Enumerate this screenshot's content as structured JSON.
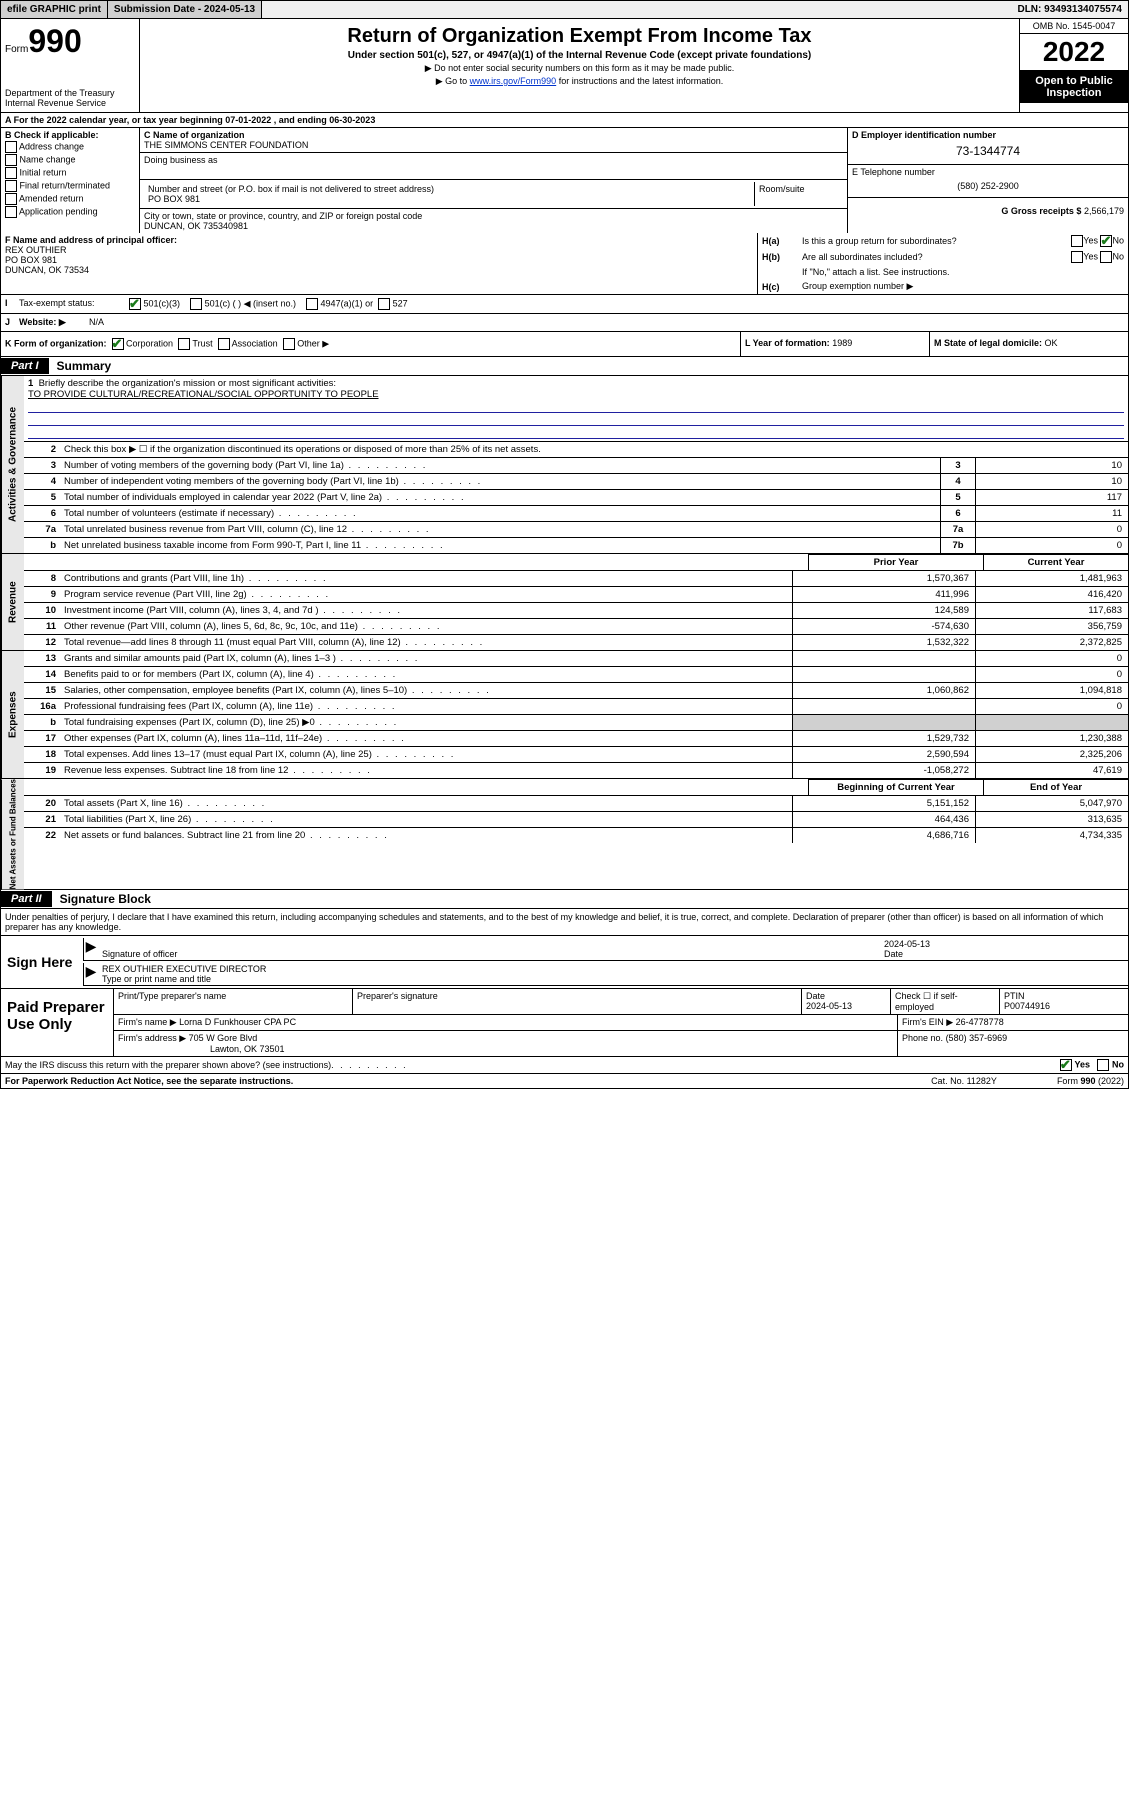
{
  "top_bar": {
    "efile": "efile GRAPHIC print",
    "submission": "Submission Date - 2024-05-13",
    "dln": "DLN: 93493134075574"
  },
  "header": {
    "form_word": "Form",
    "form_num": "990",
    "dept": "Department of the Treasury",
    "irs": "Internal Revenue Service",
    "title": "Return of Organization Exempt From Income Tax",
    "subtitle": "Under section 501(c), 527, or 4947(a)(1) of the Internal Revenue Code (except private foundations)",
    "note1": "▶ Do not enter social security numbers on this form as it may be made public.",
    "note2_pre": "▶ Go to ",
    "note2_link": "www.irs.gov/Form990",
    "note2_post": " for instructions and the latest information.",
    "omb": "OMB No. 1545-0047",
    "year": "2022",
    "inspection1": "Open to Public",
    "inspection2": "Inspection"
  },
  "line_a": "A For the 2022 calendar year, or tax year beginning 07-01-2022     , and ending 06-30-2023",
  "box_b": {
    "title": "B Check if applicable:",
    "items": [
      "Address change",
      "Name change",
      "Initial return",
      "Final return/terminated",
      "Amended return",
      "Application pending"
    ]
  },
  "box_c": {
    "name_label": "C Name of organization",
    "name": "THE SIMMONS CENTER FOUNDATION",
    "dba_label": "Doing business as",
    "dba": "",
    "street_label": "Number and street (or P.O. box if mail is not delivered to street address)",
    "room_label": "Room/suite",
    "street": "PO BOX 981",
    "city_label": "City or town, state or province, country, and ZIP or foreign postal code",
    "city": "DUNCAN, OK  735340981"
  },
  "box_d": {
    "label": "D Employer identification number",
    "value": "73-1344774"
  },
  "box_e": {
    "label": "E Telephone number",
    "value": "(580) 252-2900"
  },
  "box_g": {
    "label": "G Gross receipts $",
    "value": "2,566,179"
  },
  "box_f": {
    "label": "F Name and address of principal officer:",
    "name": "REX OUTHIER",
    "street": "PO BOX 981",
    "city": "DUNCAN, OK  73534"
  },
  "box_h": {
    "a_lbl": "H(a)",
    "a_txt": "Is this a group return for subordinates?",
    "b_lbl": "H(b)",
    "b_txt": "Are all subordinates included?",
    "b_note": "If \"No,\" attach a list. See instructions.",
    "c_lbl": "H(c)",
    "c_txt": "Group exemption number ▶",
    "yes": "Yes",
    "no": "No"
  },
  "line_i": {
    "label": "I",
    "txt": "Tax-exempt status:",
    "o1": "501(c)(3)",
    "o2": "501(c) (  ) ◀ (insert no.)",
    "o3": "4947(a)(1) or",
    "o4": "527"
  },
  "line_j": {
    "label": "J",
    "txt": "Website: ▶",
    "val": "N/A"
  },
  "line_k": {
    "label": "K Form of organization:",
    "o1": "Corporation",
    "o2": "Trust",
    "o3": "Association",
    "o4": "Other ▶"
  },
  "line_l": {
    "label": "L Year of formation:",
    "val": "1989"
  },
  "line_m": {
    "label": "M State of legal domicile:",
    "val": "OK"
  },
  "part1": {
    "label": "Part I",
    "title": "Summary"
  },
  "vtabs": {
    "gov": "Activities & Governance",
    "rev": "Revenue",
    "exp": "Expenses",
    "net": "Net Assets or Fund Balances"
  },
  "mission": {
    "n": "1",
    "label": "Briefly describe the organization's mission or most significant activities:",
    "text": "TO PROVIDE CULTURAL/RECREATIONAL/SOCIAL OPPORTUNITY TO PEOPLE"
  },
  "gov_rows": [
    {
      "n": "2",
      "d": "Check this box ▶ ☐  if the organization discontinued its operations or disposed of more than 25% of its net assets.",
      "box": "",
      "val": ""
    },
    {
      "n": "3",
      "d": "Number of voting members of the governing body (Part VI, line 1a)",
      "box": "3",
      "val": "10"
    },
    {
      "n": "4",
      "d": "Number of independent voting members of the governing body (Part VI, line 1b)",
      "box": "4",
      "val": "10"
    },
    {
      "n": "5",
      "d": "Total number of individuals employed in calendar year 2022 (Part V, line 2a)",
      "box": "5",
      "val": "117"
    },
    {
      "n": "6",
      "d": "Total number of volunteers (estimate if necessary)",
      "box": "6",
      "val": "11"
    },
    {
      "n": "7a",
      "d": "Total unrelated business revenue from Part VIII, column (C), line 12",
      "box": "7a",
      "val": "0"
    },
    {
      "n": "b",
      "d": "Net unrelated business taxable income from Form 990-T, Part I, line 11",
      "box": "7b",
      "val": "0"
    }
  ],
  "col_headers": {
    "prior": "Prior Year",
    "current": "Current Year"
  },
  "rev_rows": [
    {
      "n": "8",
      "d": "Contributions and grants (Part VIII, line 1h)",
      "v1": "1,570,367",
      "v2": "1,481,963"
    },
    {
      "n": "9",
      "d": "Program service revenue (Part VIII, line 2g)",
      "v1": "411,996",
      "v2": "416,420"
    },
    {
      "n": "10",
      "d": "Investment income (Part VIII, column (A), lines 3, 4, and 7d )",
      "v1": "124,589",
      "v2": "117,683"
    },
    {
      "n": "11",
      "d": "Other revenue (Part VIII, column (A), lines 5, 6d, 8c, 9c, 10c, and 11e)",
      "v1": "-574,630",
      "v2": "356,759"
    },
    {
      "n": "12",
      "d": "Total revenue—add lines 8 through 11 (must equal Part VIII, column (A), line 12)",
      "v1": "1,532,322",
      "v2": "2,372,825"
    }
  ],
  "exp_rows": [
    {
      "n": "13",
      "d": "Grants and similar amounts paid (Part IX, column (A), lines 1–3 )",
      "v1": "",
      "v2": "0"
    },
    {
      "n": "14",
      "d": "Benefits paid to or for members (Part IX, column (A), line 4)",
      "v1": "",
      "v2": "0"
    },
    {
      "n": "15",
      "d": "Salaries, other compensation, employee benefits (Part IX, column (A), lines 5–10)",
      "v1": "1,060,862",
      "v2": "1,094,818"
    },
    {
      "n": "16a",
      "d": "Professional fundraising fees (Part IX, column (A), line 11e)",
      "v1": "",
      "v2": "0"
    },
    {
      "n": "b",
      "d": "Total fundraising expenses (Part IX, column (D), line 25) ▶0",
      "grey1": true,
      "grey2": true
    },
    {
      "n": "17",
      "d": "Other expenses (Part IX, column (A), lines 11a–11d, 11f–24e)",
      "v1": "1,529,732",
      "v2": "1,230,388"
    },
    {
      "n": "18",
      "d": "Total expenses. Add lines 13–17 (must equal Part IX, column (A), line 25)",
      "v1": "2,590,594",
      "v2": "2,325,206"
    },
    {
      "n": "19",
      "d": "Revenue less expenses. Subtract line 18 from line 12",
      "v1": "-1,058,272",
      "v2": "47,619"
    }
  ],
  "net_headers": {
    "begin": "Beginning of Current Year",
    "end": "End of Year"
  },
  "net_rows": [
    {
      "n": "20",
      "d": "Total assets (Part X, line 16)",
      "v1": "5,151,152",
      "v2": "5,047,970"
    },
    {
      "n": "21",
      "d": "Total liabilities (Part X, line 26)",
      "v1": "464,436",
      "v2": "313,635"
    },
    {
      "n": "22",
      "d": "Net assets or fund balances. Subtract line 21 from line 20",
      "v1": "4,686,716",
      "v2": "4,734,335"
    }
  ],
  "part2": {
    "label": "Part II",
    "title": "Signature Block"
  },
  "sig_text": "Under penalties of perjury, I declare that I have examined this return, including accompanying schedules and statements, and to the best of my knowledge and belief, it is true, correct, and complete. Declaration of preparer (other than officer) is based on all information of which preparer has any knowledge.",
  "sign": {
    "label": "Sign Here",
    "sig_of_officer": "Signature of officer",
    "date": "2024-05-13",
    "date_label": "Date",
    "name": "REX OUTHIER  EXECUTIVE DIRECTOR",
    "name_label": "Type or print name and title"
  },
  "paid": {
    "label": "Paid Preparer Use Only",
    "h1": "Print/Type preparer's name",
    "h2": "Preparer's signature",
    "h3": "Date",
    "h3v": "2024-05-13",
    "h4": "Check ☐ if self-employed",
    "h5": "PTIN",
    "h5v": "P00744916",
    "firm_name_l": "Firm's name    ▶",
    "firm_name": "Lorna D Funkhouser CPA PC",
    "firm_ein_l": "Firm's EIN ▶",
    "firm_ein": "26-4778778",
    "firm_addr_l": "Firm's address ▶",
    "firm_addr1": "705 W Gore Blvd",
    "firm_addr2": "Lawton, OK  73501",
    "phone_l": "Phone no.",
    "phone": "(580) 357-6969"
  },
  "may": {
    "txt": "May the IRS discuss this return with the preparer shown above? (see instructions)",
    "yes": "Yes",
    "no": "No"
  },
  "footer": {
    "paperwork": "For Paperwork Reduction Act Notice, see the separate instructions.",
    "cat": "Cat. No. 11282Y",
    "form": "Form 990 (2022)"
  },
  "colors": {
    "link": "#0033cc",
    "check": "#1a7a1a",
    "black": "#000000",
    "grey_bg": "#d0d0d0",
    "vtab_bg": "#e8e8e8"
  }
}
